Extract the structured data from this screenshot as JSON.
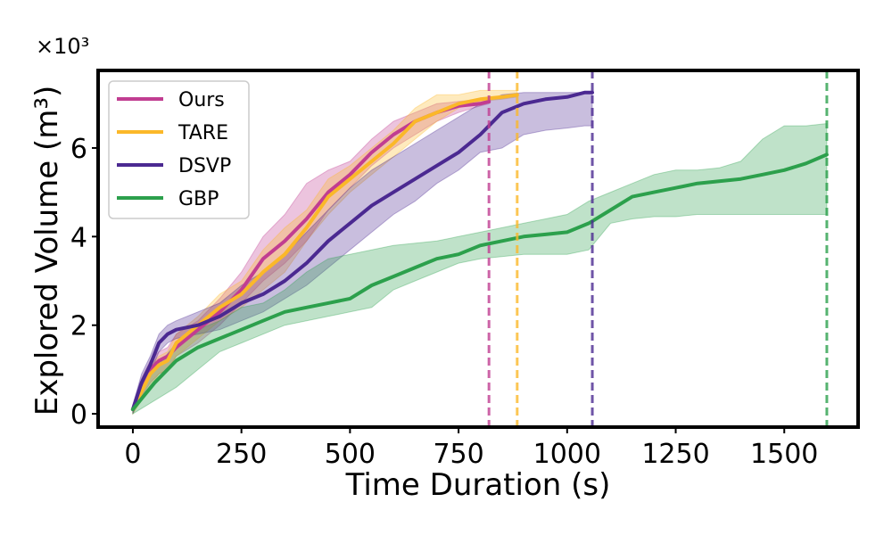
{
  "chart_data": {
    "type": "line",
    "xlabel": "Time Duration (s)",
    "ylabel": "Explored Volume (m³)",
    "y_scale_label": "×10³",
    "xlim": [
      -80,
      1670
    ],
    "ylim": [
      -0.3,
      7.75
    ],
    "xticks": [
      0,
      250,
      500,
      750,
      1000,
      1250,
      1500
    ],
    "xtick_labels": [
      "0",
      "250",
      "500",
      "750",
      "1000",
      "1250",
      "1500"
    ],
    "yticks": [
      0,
      2,
      4,
      6
    ],
    "ytick_labels": [
      "0",
      "2",
      "4",
      "6"
    ],
    "grid": false,
    "legend_position": "top-left",
    "series": [
      {
        "name": "Ours",
        "color": "#c13d91",
        "end_time": 820,
        "x": [
          0,
          20,
          40,
          60,
          80,
          100,
          150,
          200,
          250,
          300,
          350,
          400,
          450,
          500,
          550,
          600,
          650,
          700,
          750,
          800,
          820
        ],
        "y": [
          0.1,
          0.6,
          1.0,
          1.2,
          1.3,
          1.5,
          1.9,
          2.3,
          2.8,
          3.5,
          3.9,
          4.4,
          5.0,
          5.4,
          5.9,
          6.3,
          6.6,
          6.8,
          6.95,
          7.0,
          7.05
        ],
        "lower": [
          0.0,
          0.4,
          0.7,
          0.9,
          1.0,
          1.3,
          1.6,
          2.0,
          2.5,
          3.0,
          3.4,
          3.9,
          4.6,
          5.1,
          5.6,
          6.0,
          6.3,
          6.6,
          6.8,
          6.95,
          7.0
        ],
        "upper": [
          0.2,
          0.8,
          1.2,
          1.4,
          1.5,
          1.8,
          2.1,
          2.6,
          3.2,
          4.0,
          4.5,
          5.2,
          5.5,
          5.7,
          6.2,
          6.6,
          6.8,
          7.0,
          7.05,
          7.1,
          7.1
        ]
      },
      {
        "name": "TARE",
        "color": "#fbb829",
        "end_time": 885,
        "x": [
          0,
          20,
          40,
          60,
          80,
          100,
          150,
          200,
          250,
          300,
          350,
          400,
          450,
          500,
          550,
          600,
          650,
          700,
          750,
          800,
          850,
          885
        ],
        "y": [
          0.1,
          0.5,
          0.9,
          1.1,
          1.2,
          1.6,
          2.0,
          2.4,
          2.7,
          3.2,
          3.6,
          4.2,
          4.9,
          5.3,
          5.7,
          6.1,
          6.6,
          6.8,
          7.0,
          7.1,
          7.15,
          7.2
        ],
        "lower": [
          0.0,
          0.3,
          0.6,
          0.9,
          1.0,
          1.3,
          1.7,
          2.1,
          2.4,
          2.8,
          3.2,
          3.9,
          4.5,
          5.0,
          5.4,
          5.8,
          6.2,
          6.6,
          6.9,
          7.05,
          7.1,
          7.15
        ],
        "upper": [
          0.2,
          0.7,
          1.1,
          1.3,
          1.4,
          1.8,
          2.2,
          2.7,
          3.0,
          3.7,
          4.2,
          4.6,
          5.3,
          5.6,
          6.0,
          6.4,
          6.9,
          7.2,
          7.2,
          7.3,
          7.3,
          7.3
        ]
      },
      {
        "name": "DSVP",
        "color": "#4b2991",
        "end_time": 1058,
        "x": [
          0,
          20,
          40,
          60,
          80,
          100,
          150,
          200,
          250,
          300,
          350,
          400,
          450,
          500,
          550,
          600,
          650,
          700,
          750,
          800,
          850,
          900,
          950,
          1000,
          1040,
          1058
        ],
        "y": [
          0.1,
          0.7,
          1.1,
          1.6,
          1.8,
          1.9,
          2.0,
          2.2,
          2.5,
          2.7,
          3.0,
          3.4,
          3.9,
          4.3,
          4.7,
          5.0,
          5.3,
          5.6,
          5.9,
          6.3,
          6.8,
          7.0,
          7.1,
          7.15,
          7.25,
          7.25
        ],
        "lower": [
          0.0,
          0.5,
          0.9,
          1.4,
          1.6,
          1.7,
          1.8,
          1.9,
          2.1,
          2.3,
          2.6,
          2.9,
          3.3,
          3.7,
          4.1,
          4.5,
          4.8,
          5.2,
          5.5,
          5.9,
          6.0,
          6.3,
          6.4,
          6.45,
          6.5,
          6.5
        ],
        "upper": [
          0.2,
          0.9,
          1.3,
          1.8,
          2.0,
          2.1,
          2.3,
          2.5,
          2.9,
          3.2,
          3.6,
          4.1,
          4.6,
          5.1,
          5.5,
          5.8,
          6.1,
          6.4,
          6.7,
          7.0,
          7.2,
          7.25,
          7.25,
          7.25,
          7.25,
          7.25
        ]
      },
      {
        "name": "GBP",
        "color": "#2ca04c",
        "end_time": 1598,
        "x": [
          0,
          50,
          100,
          150,
          200,
          250,
          300,
          350,
          400,
          450,
          500,
          550,
          600,
          650,
          700,
          750,
          800,
          850,
          900,
          950,
          1000,
          1050,
          1100,
          1150,
          1200,
          1250,
          1300,
          1350,
          1400,
          1450,
          1500,
          1550,
          1598
        ],
        "y": [
          0.1,
          0.7,
          1.2,
          1.5,
          1.7,
          1.9,
          2.1,
          2.3,
          2.4,
          2.5,
          2.6,
          2.9,
          3.1,
          3.3,
          3.5,
          3.6,
          3.8,
          3.9,
          4.0,
          4.05,
          4.1,
          4.3,
          4.6,
          4.9,
          5.0,
          5.1,
          5.2,
          5.25,
          5.3,
          5.4,
          5.5,
          5.65,
          5.85
        ],
        "lower": [
          0.0,
          0.3,
          0.6,
          1.0,
          1.4,
          1.6,
          1.8,
          2.0,
          2.1,
          2.2,
          2.3,
          2.4,
          2.8,
          3.0,
          3.2,
          3.4,
          3.5,
          3.55,
          3.6,
          3.6,
          3.6,
          3.7,
          4.3,
          4.4,
          4.45,
          4.45,
          4.5,
          4.5,
          4.5,
          4.5,
          4.5,
          4.5,
          4.5
        ],
        "upper": [
          0.2,
          1.0,
          1.6,
          1.9,
          2.1,
          2.4,
          2.5,
          2.8,
          3.2,
          3.5,
          3.6,
          3.7,
          3.8,
          3.85,
          3.9,
          4.0,
          4.1,
          4.2,
          4.3,
          4.4,
          4.5,
          4.8,
          5.0,
          5.2,
          5.4,
          5.5,
          5.5,
          5.55,
          5.7,
          6.2,
          6.5,
          6.5,
          6.55
        ]
      }
    ]
  }
}
